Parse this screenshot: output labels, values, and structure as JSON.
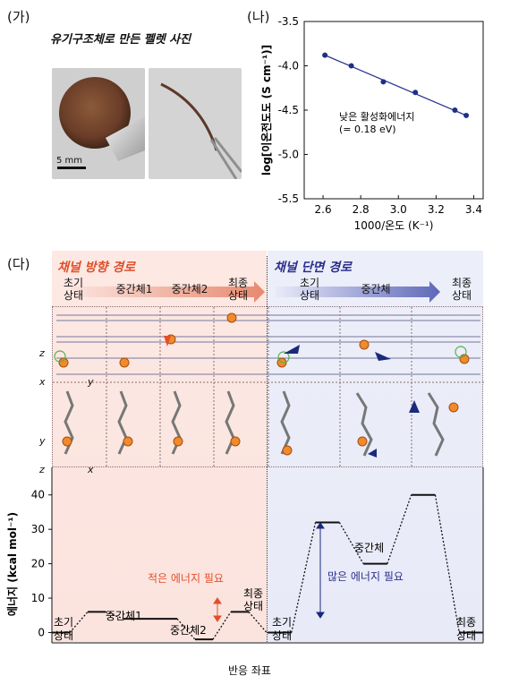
{
  "panel_a": {
    "tag": "(가)",
    "title": "유기구조체로 만든 펠렛 사진",
    "scale_bar": "5 mm"
  },
  "panel_b": {
    "tag": "(나)",
    "annotation_line1": "낮은 활성화에너지",
    "annotation_line2": "(= 0.18 eV)"
  },
  "panel_c": {
    "tag": "(다)",
    "left_title": "채널 방향 경로",
    "right_title": "채널 단면 경로",
    "left_stages": [
      {
        "l1": "초기",
        "l2": "상태"
      },
      {
        "l1": "중간체1",
        "l2": ""
      },
      {
        "l1": "중간체2",
        "l2": ""
      },
      {
        "l1": "최종",
        "l2": "상태"
      }
    ],
    "right_stages": [
      {
        "l1": "초기",
        "l2": "상태"
      },
      {
        "l1": "중간체",
        "l2": ""
      },
      {
        "l1": "최종",
        "l2": "상태"
      }
    ],
    "axis_z1": "z",
    "axis_x1": "x",
    "axis_y1": "y",
    "axis_y2": "y",
    "axis_z2": "z",
    "axis_x2": "x",
    "energy_labels": {
      "l_init_1": "초기",
      "l_init_2": "상태",
      "l_int1": "중간체1",
      "l_int2": "중간체2",
      "l_final_1": "최종",
      "l_final_2": "상태",
      "small_energy": "적은 에너지 필요",
      "r_init_1": "초기",
      "r_init_2": "상태",
      "r_int": "중간체",
      "r_final_1": "최종",
      "r_final_2": "상태",
      "large_energy": "많은 에너지 필요"
    },
    "bottom_xlabel": "반응 좌표"
  },
  "colors": {
    "red_accent": "#e0502a",
    "blue_accent": "#2b2f8a",
    "pink_bg": "#fbe3de",
    "lilac_bg": "#e9eaf8",
    "line_blue": "#1f2f86"
  },
  "chart_data": [
    {
      "type": "scatter",
      "x": [
        2.61,
        2.75,
        2.92,
        3.09,
        3.3,
        3.36
      ],
      "y": [
        -3.88,
        -4.0,
        -4.18,
        -4.3,
        -4.5,
        -4.56
      ],
      "fit_line": {
        "x": [
          2.61,
          3.36
        ],
        "y": [
          -3.88,
          -4.56
        ]
      },
      "xlabel": "1000/온도 (K⁻¹)",
      "ylabel": "log[이온전도도 (S cm⁻¹)]",
      "xlim": [
        2.5,
        3.45
      ],
      "ylim": [
        -5.5,
        -3.5
      ],
      "xticks": [
        "2.6",
        "2.8",
        "3.0",
        "3.2",
        "3.4"
      ],
      "yticks": [
        "-3.5",
        "-4.0",
        "-4.5",
        "-5.0",
        "-5.5"
      ]
    },
    {
      "type": "line",
      "ylabel": "에너지 (kcal mol⁻¹)",
      "ylim": [
        -3,
        48
      ],
      "yticks": [
        "0",
        "10",
        "20",
        "30",
        "40"
      ],
      "series": [
        {
          "x": [
            0,
            20,
            40,
            60,
            80,
            100,
            120,
            140,
            160,
            180,
            200,
            220,
            240
          ],
          "y": [
            0,
            0,
            6,
            6,
            4,
            4,
            4,
            4,
            -2,
            -2,
            6,
            6,
            0
          ]
        },
        {
          "x": [
            0,
            25,
            50,
            75,
            100,
            125,
            150,
            175,
            200,
            225
          ],
          "y": [
            0,
            0,
            32,
            32,
            20,
            20,
            40,
            40,
            0,
            0
          ]
        }
      ]
    }
  ]
}
